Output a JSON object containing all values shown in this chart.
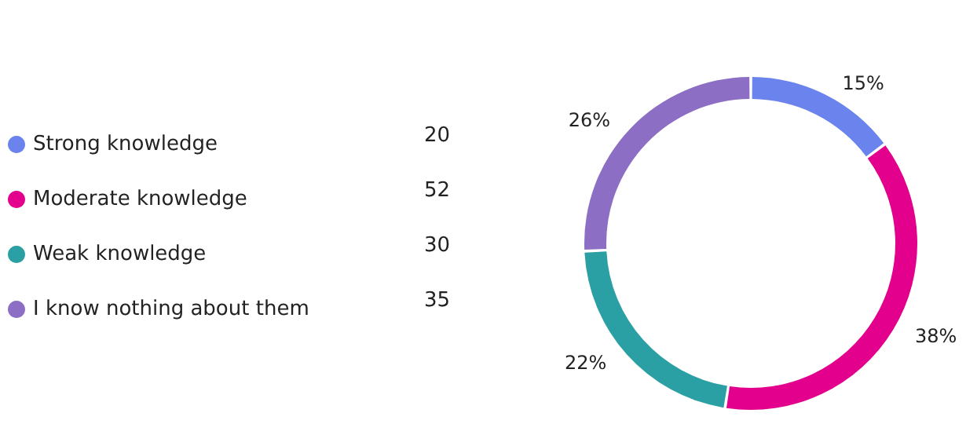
{
  "chart_data": {
    "type": "donut",
    "categories": [
      "Strong knowledge",
      "Moderate knowledge",
      "Weak knowledge",
      "I know nothing about them"
    ],
    "values": [
      15,
      38,
      22,
      26
    ],
    "value_labels": [
      "15%",
      "38%",
      "22%",
      "26%"
    ],
    "annotations": [
      "20",
      "52",
      "30",
      "35"
    ],
    "colors": [
      "#6b83ec",
      "#e3008c",
      "#2aa0a4",
      "#8c6fc4"
    ],
    "legend": "left"
  }
}
